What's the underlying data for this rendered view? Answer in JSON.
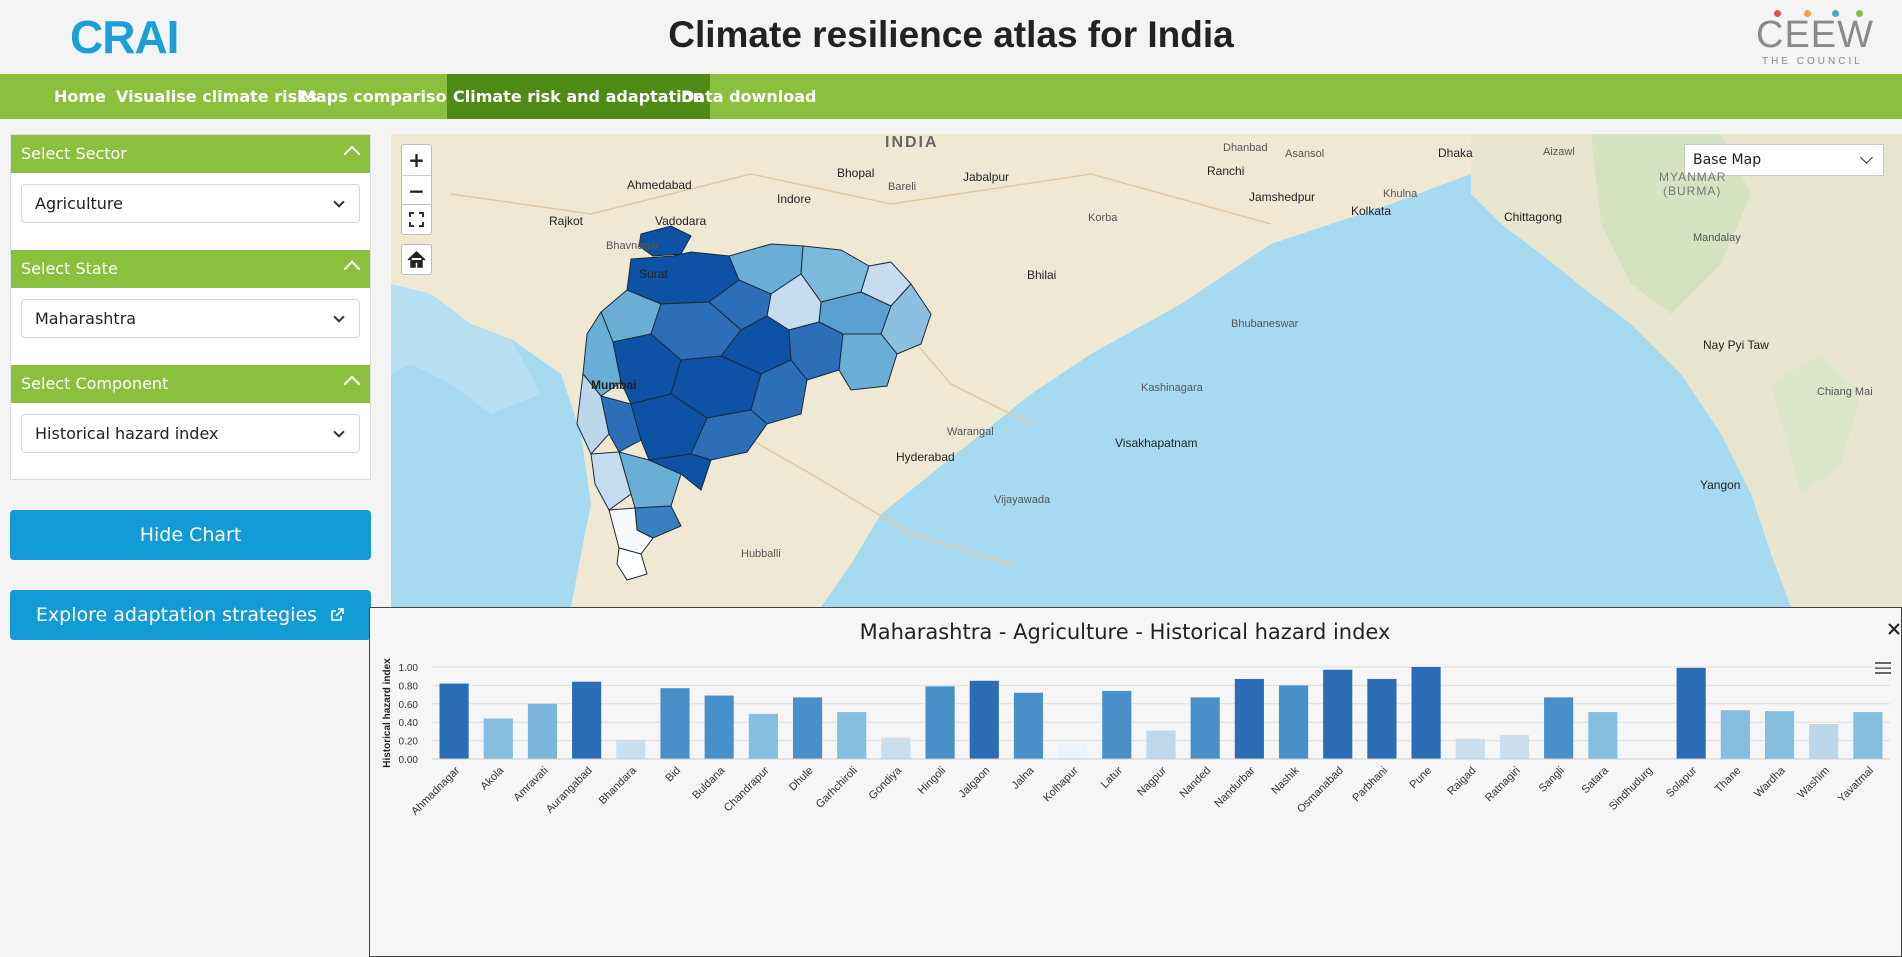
{
  "header": {
    "logo_left": "CRAI",
    "title": "Climate resilience atlas for India",
    "logo_right": "CEEW",
    "logo_right_sub": "THE COUNCIL"
  },
  "nav": {
    "items": [
      "Home",
      "Visualise climate risks",
      "Maps comparison",
      "Climate risk and adaptation",
      "Data download"
    ],
    "active_index": 3
  },
  "sidebar": {
    "sector_label": "Select Sector",
    "sector_value": "Agriculture",
    "state_label": "Select State",
    "state_value": "Maharashtra",
    "component_label": "Select Component",
    "component_value": "Historical hazard index",
    "hide_chart_label": "Hide Chart",
    "explore_label": "Explore adaptation strategies"
  },
  "map": {
    "basemap_label": "Base Map",
    "zoom_in": "+",
    "zoom_out": "−",
    "places": {
      "india": "INDIA",
      "myanmar": "MYANMAR",
      "burma": "(BURMA)",
      "ahmedabad": "Ahmedabad",
      "rajkot": "Rajkot",
      "vadodara": "Vadodara",
      "bhavnagar": "Bhavnagar",
      "surat": "Surat",
      "mumbai": "Mumbai",
      "bhopal": "Bhopal",
      "bareli": "Bareli",
      "indore": "Indore",
      "jabalpur": "Jabalpur",
      "korba": "Korba",
      "bhilai": "Bhilai",
      "ranchi": "Ranchi",
      "dhanbad": "Dhanbad",
      "asansol": "Asansol",
      "jamshedpur": "Jamshedpur",
      "dhaka": "Dhaka",
      "khulna": "Khulna",
      "kolkata": "Kolkata",
      "chittagong": "Chittagong",
      "aizawl": "Aizawl",
      "mandalay": "Mandalay",
      "bhubaneswar": "Bhubaneswar",
      "nay_pyi_taw": "Nay Pyi Taw",
      "chiang_mai": "Chiang Mai",
      "kashinagara": "Kashinagara",
      "warangal": "Warangal",
      "hyderabad": "Hyderabad",
      "visakhapatnam": "Visakhapatnam",
      "vijayawada": "Vijayawada",
      "yangon": "Yangon",
      "hubballi": "Hubballi"
    }
  },
  "chart_data": {
    "type": "bar",
    "title": "Maharashtra - Agriculture - Historical hazard index",
    "ylabel": "Historical hazard index",
    "xlabel": "",
    "ylim": [
      0,
      1.0
    ],
    "yticks": [
      "0.00",
      "0.20",
      "0.40",
      "0.60",
      "0.80",
      "1.00"
    ],
    "categories": [
      "Ahmadnagar",
      "Akola",
      "Amravati",
      "Aurangabad",
      "Bhandara",
      "Bid",
      "Buldana",
      "Chandrapur",
      "Dhule",
      "Garhchiroli",
      "Gondiya",
      "Hingoli",
      "Jalgaon",
      "Jalna",
      "Kolhapur",
      "Latur",
      "Nagpur",
      "Nanded",
      "Nandurbar",
      "Nashik",
      "Osmanabad",
      "Parbhani",
      "Pune",
      "Raigad",
      "Ratnagiri",
      "Sangli",
      "Satara",
      "Sindhudurg",
      "Solapur",
      "Thane",
      "Wardha",
      "Washim",
      "Yavatmal"
    ],
    "values": [
      0.82,
      0.44,
      0.6,
      0.84,
      0.21,
      0.77,
      0.69,
      0.49,
      0.67,
      0.51,
      0.23,
      0.79,
      0.85,
      0.72,
      0.18,
      0.74,
      0.31,
      0.67,
      0.87,
      0.8,
      0.97,
      0.87,
      1.0,
      0.22,
      0.26,
      0.67,
      0.51,
      0.0,
      0.99,
      0.53,
      0.52,
      0.38,
      0.51
    ],
    "colors": [
      "#2b6db4",
      "#86bedf",
      "#7bb7dc",
      "#2b6db4",
      "#c9dfee",
      "#4a90c8",
      "#4a90c8",
      "#86bedf",
      "#4a90c8",
      "#86bedf",
      "#c9dfee",
      "#4a90c8",
      "#2b6db4",
      "#4a90c8",
      "#eef3f9",
      "#4a90c8",
      "#c0d8eb",
      "#4a90c8",
      "#2b6db4",
      "#4a90c8",
      "#2b6db4",
      "#2b6db4",
      "#2b6db4",
      "#c9dfee",
      "#c9dfee",
      "#4a90c8",
      "#86bedf",
      "#ffffff",
      "#2b6db4",
      "#86bedf",
      "#86bedf",
      "#bcd6ea",
      "#86bedf"
    ]
  }
}
